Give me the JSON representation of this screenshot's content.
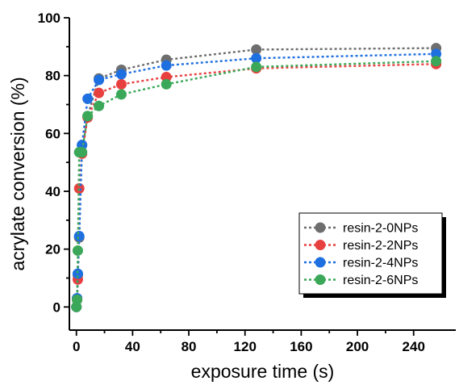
{
  "chart_data": {
    "type": "scatter",
    "xlabel": "exposure time (s)",
    "ylabel": "acrylate conversion (%)",
    "xlim": [
      -5,
      270
    ],
    "ylim": [
      -8,
      100
    ],
    "xticks": [
      0,
      40,
      80,
      120,
      160,
      200,
      240
    ],
    "yticks": [
      0,
      20,
      40,
      60,
      80,
      100
    ],
    "grid": false,
    "legend_position": "bottom-right",
    "series": [
      {
        "name": "resin-2-0NPs",
        "color": "#6e6e6e",
        "x": [
          0,
          0.5,
          1,
          2,
          4,
          8,
          16,
          32,
          64,
          128,
          256
        ],
        "y": [
          0,
          3,
          11,
          24,
          56,
          66,
          79,
          82,
          85.5,
          89,
          89.5
        ]
      },
      {
        "name": "resin-2-2NPs",
        "color": "#e8403f",
        "x": [
          0,
          0.5,
          1,
          2,
          4,
          8,
          16,
          32,
          64,
          128,
          256
        ],
        "y": [
          0,
          2.5,
          9.5,
          41,
          53,
          65.5,
          74,
          77,
          79.5,
          82.5,
          84
        ]
      },
      {
        "name": "resin-2-4NPs",
        "color": "#1e6fe0",
        "x": [
          0,
          0.5,
          1,
          2,
          4,
          8,
          16,
          32,
          64,
          128,
          256
        ],
        "y": [
          0,
          3,
          11.5,
          24.5,
          56,
          72,
          78.5,
          80.5,
          83.5,
          86,
          87.5
        ]
      },
      {
        "name": "resin-2-6NPs",
        "color": "#3aa858",
        "x": [
          0,
          0.5,
          1,
          2,
          4,
          8,
          16,
          32,
          64,
          128,
          256
        ],
        "y": [
          0,
          2.5,
          19.5,
          53.5,
          53.5,
          66,
          69.5,
          73.5,
          77,
          83,
          85
        ]
      }
    ]
  }
}
